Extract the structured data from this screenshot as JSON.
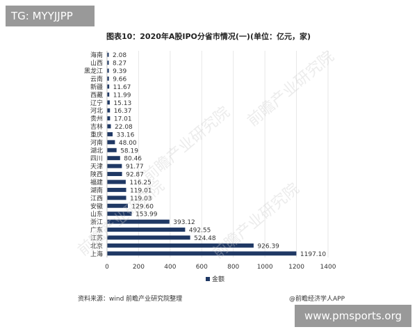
{
  "labels": {
    "tag_top_left": "TG: MYYJJPP",
    "tag_bottom_right": "www.pmsports.org",
    "source": "资料来源：wind 前瞻产业研究院整理",
    "credit": "@前瞻经济学人APP",
    "watermark": "前瞻产业研究院"
  },
  "chart_data": {
    "type": "bar",
    "orientation": "horizontal",
    "title": "图表10：2020年A股IPO分省市情况(一)(单位：亿元，家)",
    "categories": [
      "海南",
      "山西",
      "黑龙江",
      "云南",
      "新疆",
      "西藏",
      "辽宁",
      "河北",
      "贵州",
      "吉林",
      "重庆",
      "河南",
      "湖北",
      "四川",
      "天津",
      "陕西",
      "福建",
      "湖南",
      "江西",
      "安徽",
      "山东",
      "浙江",
      "广东",
      "江苏",
      "北京",
      "上海"
    ],
    "series": [
      {
        "name": "金额",
        "values": [
          2.08,
          8.27,
          9.39,
          9.66,
          11.67,
          11.99,
          15.13,
          16.37,
          17.01,
          22.08,
          33.16,
          48.0,
          58.19,
          80.46,
          91.77,
          92.87,
          116.25,
          119.01,
          119.03,
          129.6,
          153.99,
          393.12,
          492.55,
          524.48,
          926.39,
          1197.1
        ],
        "value_labels": [
          "2.08",
          "8.27",
          "9.39",
          "9.66",
          "11.67",
          "11.99",
          "15.13",
          "16.37",
          "17.01",
          "22.08",
          "33.16",
          "48.00",
          "58.19",
          "80.46",
          "91.77",
          "92.87",
          "116.25",
          "119.01",
          "119.03",
          "129.60",
          "153.99",
          "393.12",
          "492.55",
          "524.48",
          "926.39",
          "1197.10"
        ],
        "color": "#1f3864"
      }
    ],
    "xlim": [
      0,
      1400
    ],
    "x_ticks": [
      0,
      200,
      400,
      600,
      800,
      1000,
      1200,
      1400
    ],
    "grid": true,
    "legend_position": "bottom"
  }
}
